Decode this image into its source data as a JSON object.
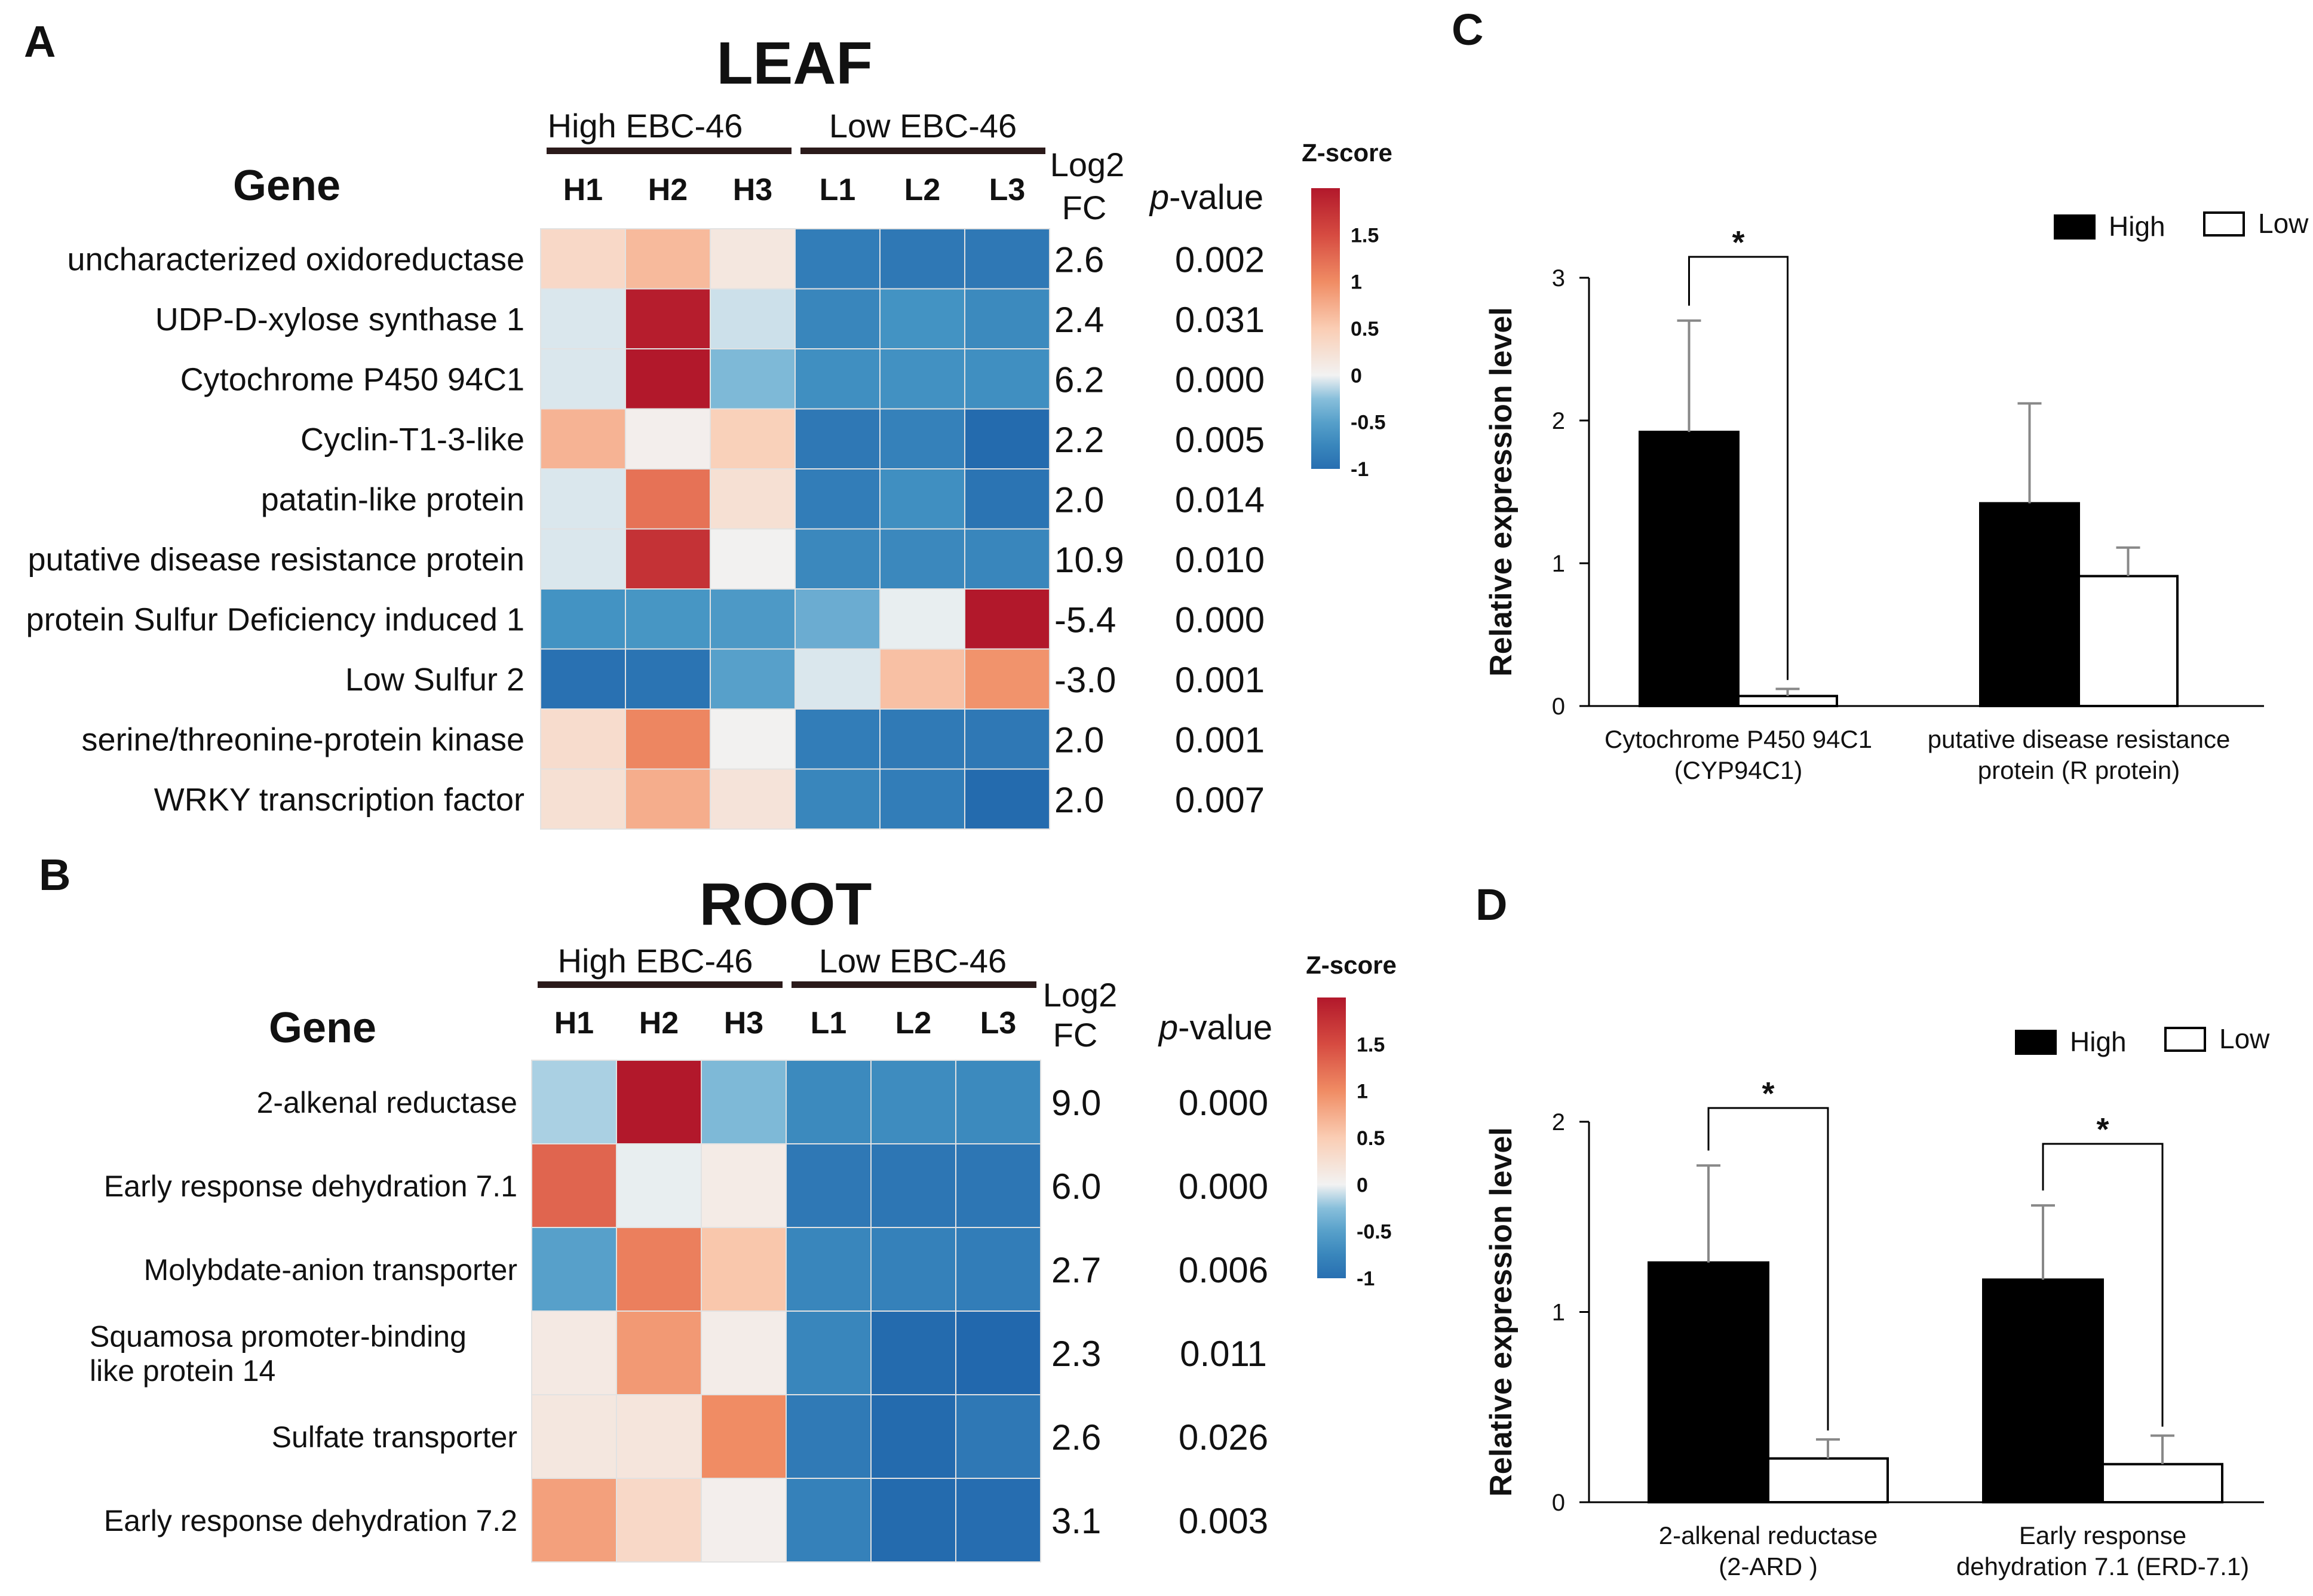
{
  "panels": {
    "A": {
      "letter": "A",
      "title": "LEAF",
      "gene_header": "Gene",
      "group_labels": [
        "High EBC-46",
        "Low EBC-46"
      ],
      "columns": [
        "H1",
        "H2",
        "H3",
        "L1",
        "L2",
        "L3"
      ],
      "fc_header": [
        "Log2",
        "FC"
      ],
      "pvalue_header": {
        "italic": "p",
        "rest": "-value"
      },
      "colorbar_title": "Z-score",
      "colorbar_ticks": [
        "1.5",
        "1",
        "0.5",
        "0",
        "-0.5",
        "-1"
      ]
    },
    "B": {
      "letter": "B",
      "title": "ROOT",
      "gene_header": "Gene",
      "group_labels": [
        "High EBC-46",
        "Low EBC-46"
      ],
      "columns": [
        "H1",
        "H2",
        "H3",
        "L1",
        "L2",
        "L3"
      ],
      "fc_header": [
        "Log2",
        "FC"
      ],
      "pvalue_header": {
        "italic": "p",
        "rest": "-value"
      },
      "colorbar_title": "Z-score",
      "colorbar_ticks": [
        "1.5",
        "1",
        "0.5",
        "0",
        "-0.5",
        "-1"
      ]
    },
    "C": {
      "letter": "C"
    },
    "D": {
      "letter": "D"
    }
  },
  "chart_data": [
    {
      "type": "heatmap",
      "panel": "A",
      "title": "LEAF",
      "zlim": [
        -1,
        2
      ],
      "genes": [
        {
          "label": "uncharacterized oxidoreductase",
          "fc": "2.6",
          "p": "0.002",
          "z": [
            0.35,
            0.65,
            0.15,
            -0.85,
            -0.9,
            -0.9
          ]
        },
        {
          "label": "UDP-D-xylose synthase 1",
          "fc": "2.4",
          "p": "0.031",
          "z": [
            -0.05,
            1.95,
            -0.08,
            -0.75,
            -0.6,
            -0.7
          ]
        },
        {
          "label": "Cytochrome P450 94C1",
          "fc": "6.2",
          "p": "0.000",
          "z": [
            -0.05,
            2.0,
            -0.3,
            -0.65,
            -0.62,
            -0.65
          ]
        },
        {
          "label": "Cyclin-T1-3-like",
          "fc": "2.2",
          "p": "0.005",
          "z": [
            0.7,
            0.05,
            0.45,
            -0.9,
            -0.8,
            -1.05
          ]
        },
        {
          "label": "patatin-like protein",
          "fc": "2.0",
          "p": "0.014",
          "z": [
            -0.05,
            1.2,
            0.25,
            -0.85,
            -0.65,
            -0.95
          ]
        },
        {
          "label": "putative disease resistance protein",
          "fc": "10.9",
          "p": "0.010",
          "z": [
            -0.05,
            1.75,
            0.02,
            -0.72,
            -0.72,
            -0.75
          ]
        },
        {
          "label": "protein Sulfur Deficiency induced 1",
          "fc": "-5.4",
          "p": "0.000",
          "z": [
            -0.6,
            -0.58,
            -0.55,
            -0.4,
            -0.02,
            2.0
          ]
        },
        {
          "label": "Low Sulfur 2",
          "fc": "-3.0",
          "p": "0.001",
          "z": [
            -0.98,
            -0.95,
            -0.5,
            -0.05,
            0.6,
            0.95
          ]
        },
        {
          "label": "serine/threonine-protein kinase",
          "fc": "2.0",
          "p": "0.001",
          "z": [
            0.3,
            1.05,
            0.02,
            -0.85,
            -0.88,
            -0.9
          ]
        },
        {
          "label": "WRKY transcription factor",
          "fc": "2.0",
          "p": "0.007",
          "z": [
            0.25,
            0.75,
            0.2,
            -0.75,
            -0.85,
            -1.05
          ]
        }
      ]
    },
    {
      "type": "heatmap",
      "panel": "B",
      "title": "ROOT",
      "zlim": [
        -1,
        2
      ],
      "genes": [
        {
          "label": "2-alkenal reductase",
          "fc": "9.0",
          "p": "0.000",
          "z": [
            -0.15,
            2.0,
            -0.3,
            -0.7,
            -0.68,
            -0.7
          ]
        },
        {
          "label": "Early response dehydration 7.1",
          "fc": "6.0",
          "p": "0.000",
          "z": [
            1.3,
            -0.02,
            0.1,
            -0.9,
            -0.92,
            -0.92
          ]
        },
        {
          "label": "Molybdate-anion transporter",
          "fc": "2.7",
          "p": "0.006",
          "z": [
            -0.5,
            1.1,
            0.55,
            -0.75,
            -0.8,
            -0.85
          ]
        },
        {
          "label": [
            "Squamosa promoter-binding",
            "like protein 14"
          ],
          "fc": "2.3",
          "p": "0.011",
          "z": [
            0.12,
            0.9,
            0.08,
            -0.75,
            -1.05,
            -1.08
          ]
        },
        {
          "label": "Sulfate transporter",
          "fc": "2.6",
          "p": "0.026",
          "z": [
            0.15,
            0.18,
            1.0,
            -0.88,
            -1.05,
            -0.9
          ]
        },
        {
          "label": "Early response dehydration 7.2",
          "fc": "3.1",
          "p": "0.003",
          "z": [
            0.85,
            0.35,
            0.05,
            -0.8,
            -1.05,
            -1.02
          ]
        }
      ]
    },
    {
      "type": "bar",
      "panel": "C",
      "ylabel": "Relative expression level",
      "ylim": [
        0,
        3
      ],
      "yticks": [
        "0",
        "1",
        "2",
        "3"
      ],
      "legend": {
        "position": "top-right",
        "entries": [
          "High",
          "Low"
        ]
      },
      "categories": [
        [
          "Cytochrome P450 94C1",
          "(CYP94C1)"
        ],
        [
          "putative disease resistance",
          "protein (R protein)"
        ]
      ],
      "series": [
        {
          "name": "High",
          "color": "#000000",
          "values": [
            1.92,
            1.42
          ],
          "errors": [
            0.78,
            0.7
          ]
        },
        {
          "name": "Low",
          "color": "#ffffff",
          "values": [
            0.07,
            0.91
          ],
          "errors": [
            0.05,
            0.2
          ]
        }
      ],
      "significance": [
        "*",
        ""
      ]
    },
    {
      "type": "bar",
      "panel": "D",
      "ylabel": "Relative expression level",
      "ylim": [
        0,
        2
      ],
      "yticks": [
        "0",
        "1",
        "2"
      ],
      "legend": {
        "position": "top-right",
        "entries": [
          "High",
          "Low"
        ]
      },
      "categories": [
        [
          "2-alkenal reductase",
          "(2-ARD )"
        ],
        [
          "Early response",
          "dehydration 7.1 (ERD-7.1)"
        ]
      ],
      "series": [
        {
          "name": "High",
          "color": "#000000",
          "values": [
            1.26,
            1.17
          ],
          "errors": [
            0.51,
            0.39
          ]
        },
        {
          "name": "Low",
          "color": "#ffffff",
          "values": [
            0.23,
            0.2
          ],
          "errors": [
            0.1,
            0.15
          ]
        }
      ],
      "significance": [
        "*",
        "*"
      ]
    }
  ]
}
